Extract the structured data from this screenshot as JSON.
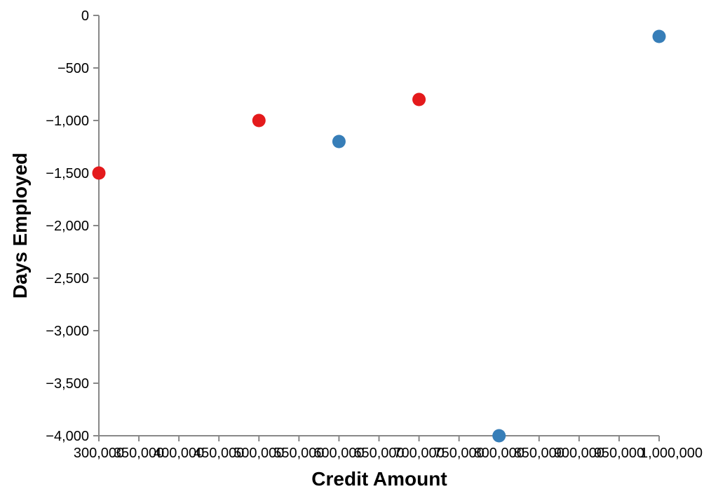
{
  "chart_data": {
    "type": "scatter",
    "xlabel": "Credit Amount",
    "ylabel": "Days Employed",
    "xlim": [
      300000,
      1000000
    ],
    "ylim": [
      -4000,
      0
    ],
    "x_ticks": [
      300000,
      350000,
      400000,
      450000,
      500000,
      550000,
      600000,
      650000,
      700000,
      750000,
      800000,
      850000,
      900000,
      950000,
      1000000
    ],
    "x_tick_labels": [
      "300,000",
      "350,000",
      "400,000",
      "450,000",
      "500,000",
      "550,000",
      "600,000",
      "650,000",
      "700,000",
      "750,000",
      "800,000",
      "850,000",
      "900,000",
      "950,000",
      "1,000,000"
    ],
    "y_ticks": [
      0,
      -500,
      -1000,
      -1500,
      -2000,
      -2500,
      -3000,
      -3500,
      -4000
    ],
    "y_tick_labels": [
      "0",
      "−500",
      "−1,000",
      "−1,500",
      "−2,000",
      "−2,500",
      "−3,000",
      "−3,500",
      "−4,000"
    ],
    "grid": false,
    "colors": {
      "red": "#e41a1c",
      "blue": "#377eb8"
    },
    "points": [
      {
        "x": 300000,
        "y": -1500,
        "color": "#e41a1c"
      },
      {
        "x": 500000,
        "y": -1000,
        "color": "#e41a1c"
      },
      {
        "x": 600000,
        "y": -1200,
        "color": "#377eb8"
      },
      {
        "x": 700000,
        "y": -800,
        "color": "#e41a1c"
      },
      {
        "x": 800000,
        "y": -4000,
        "color": "#377eb8"
      },
      {
        "x": 1000000,
        "y": -200,
        "color": "#377eb8"
      }
    ]
  }
}
